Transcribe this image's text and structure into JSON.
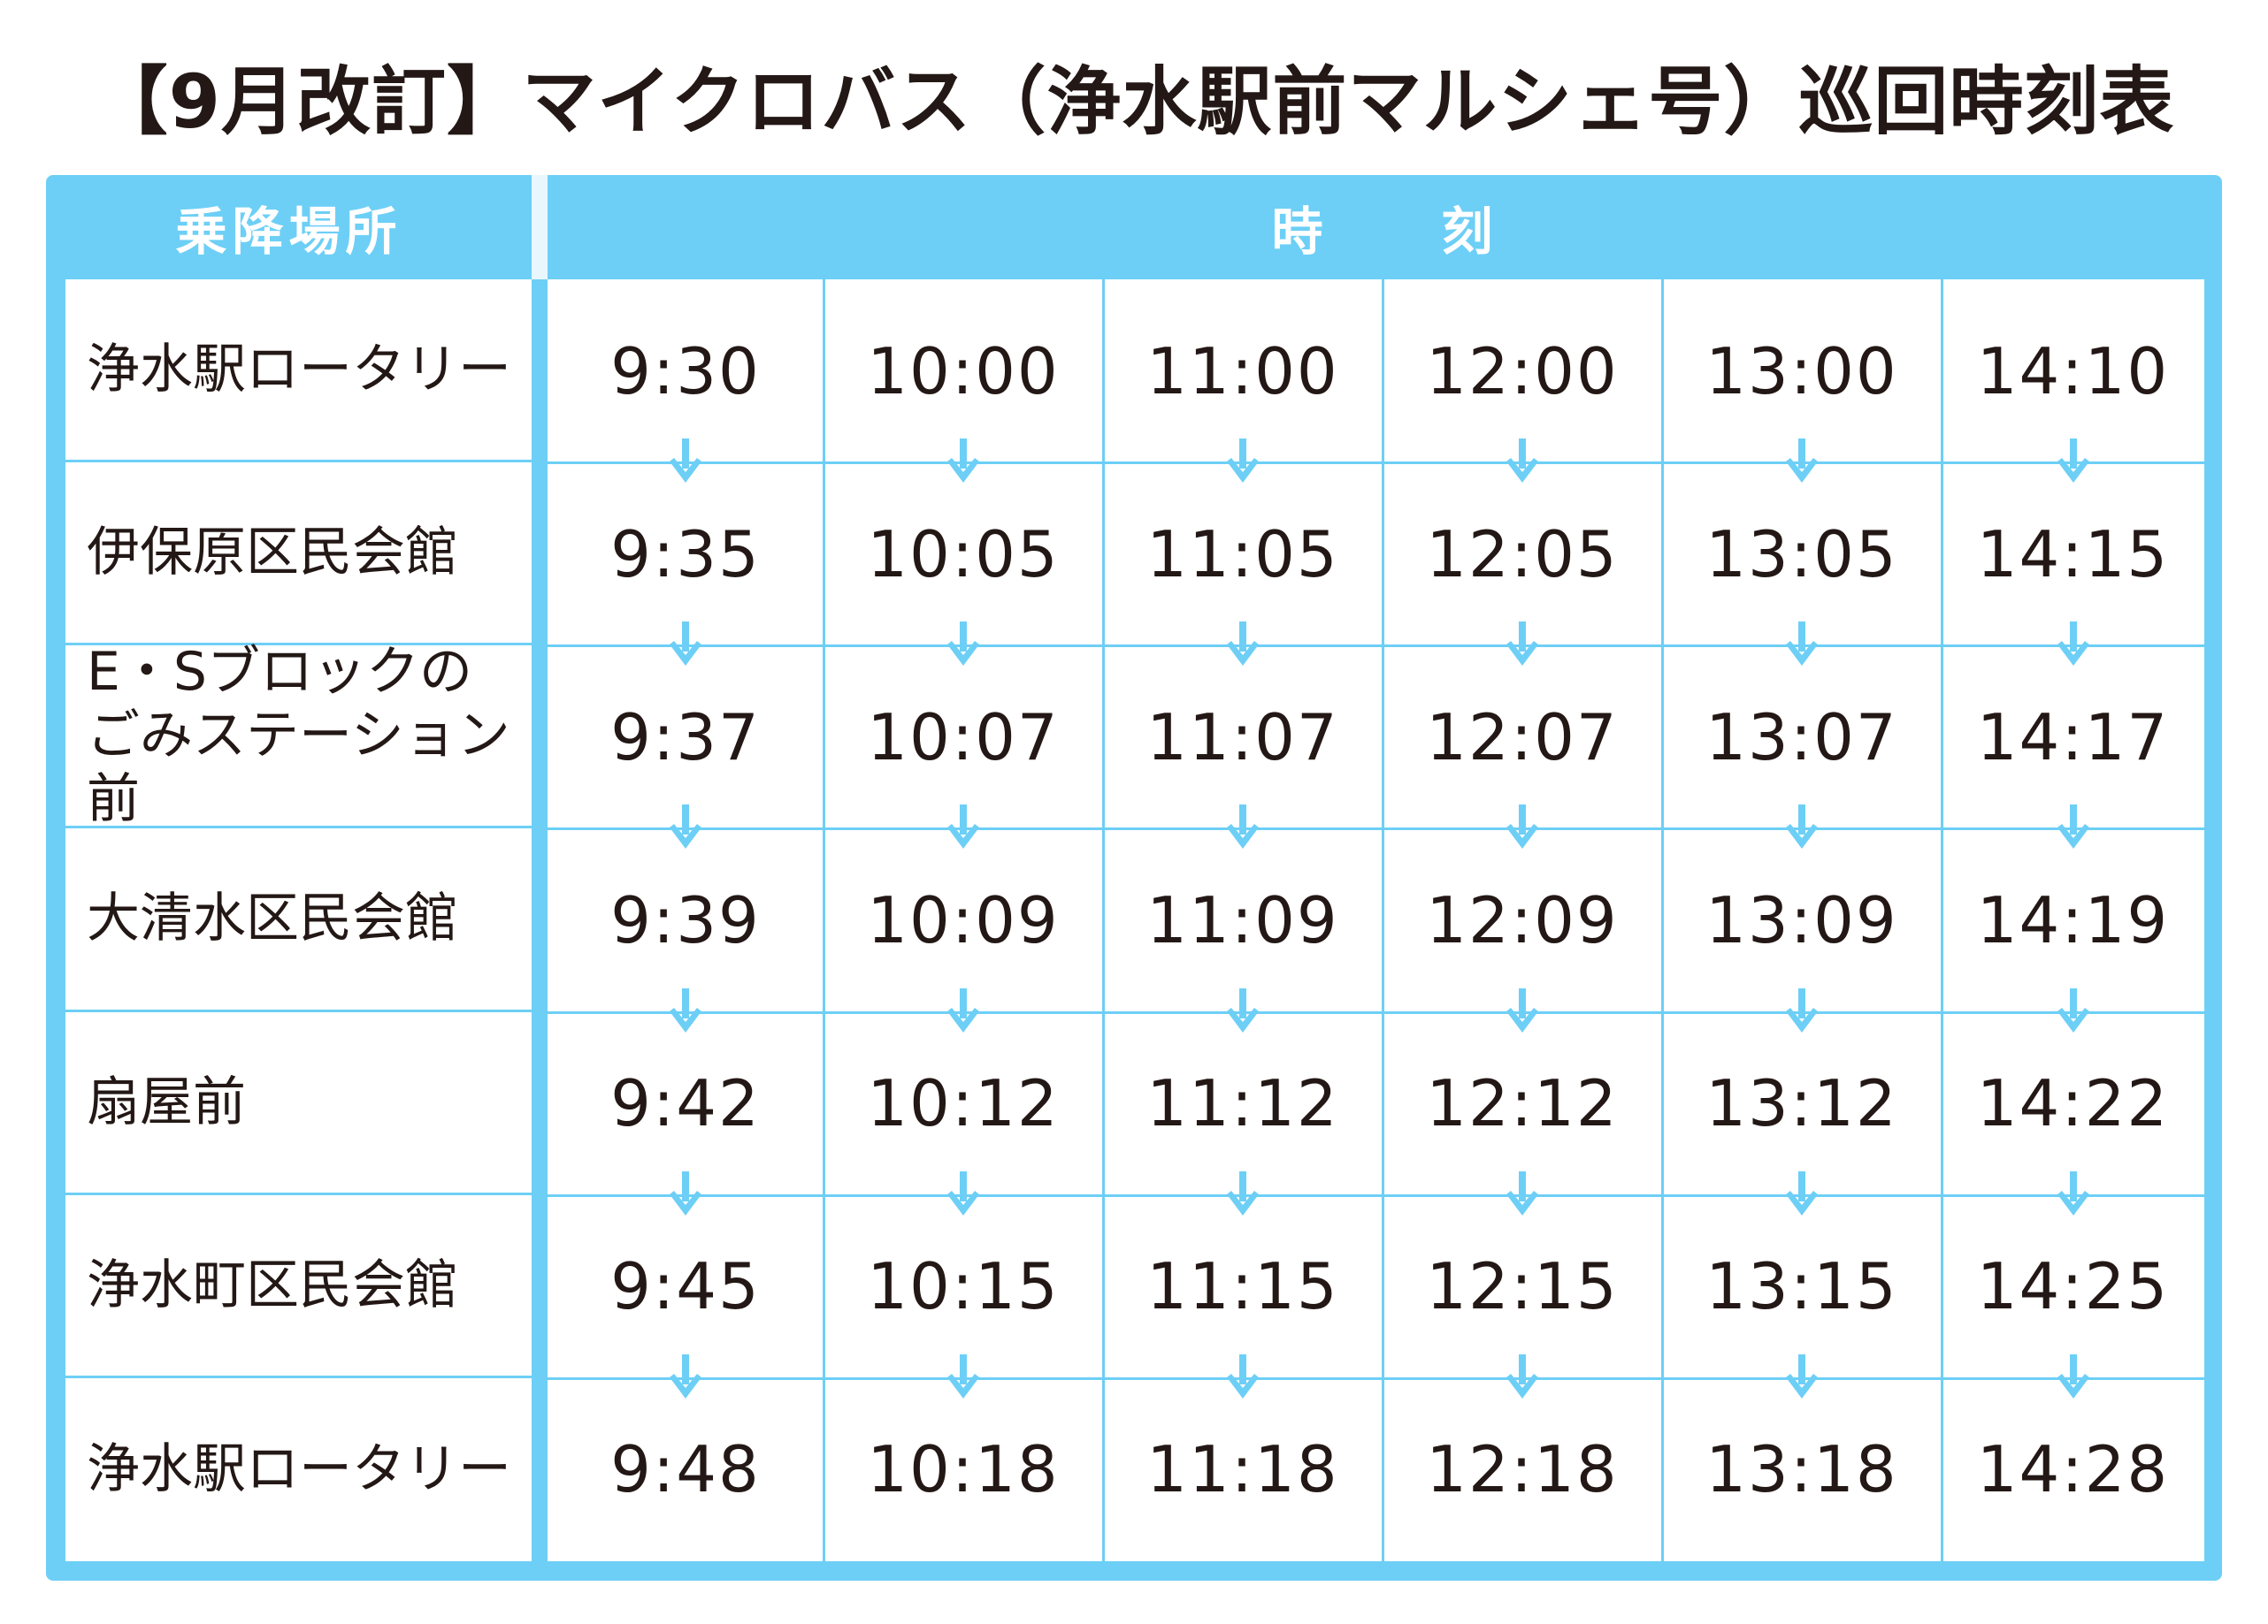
{
  "title": "【9月改訂】マイクロバス（浄水駅前マルシェ号）巡回時刻表",
  "header": {
    "stops_label": "乗降場所",
    "times_label": "時　　刻"
  },
  "colors": {
    "accent": "#6dcff6",
    "text": "#231815",
    "header_text": "#ffffff"
  },
  "arrow_icon": "down-arrow-icon",
  "stops": [
    {
      "name": "浄水駅ロータリー",
      "lines": [
        "浄水駅ロータリー"
      ]
    },
    {
      "name": "伊保原区民会館",
      "lines": [
        "伊保原区民会館"
      ]
    },
    {
      "name": "E・Sブロックのごみステーション前",
      "lines": [
        "E・Sブロックの",
        "ごみステーション前"
      ]
    },
    {
      "name": "大清水区民会館",
      "lines": [
        "大清水区民会館"
      ]
    },
    {
      "name": "扇屋前",
      "lines": [
        "扇屋前"
      ]
    },
    {
      "name": "浄水町区民会館",
      "lines": [
        "浄水町区民会館"
      ]
    },
    {
      "name": "浄水駅ロータリー",
      "lines": [
        "浄水駅ロータリー"
      ]
    }
  ],
  "trips": [
    [
      "9:30",
      "9:35",
      "9:37",
      "9:39",
      "9:42",
      "9:45",
      "9:48"
    ],
    [
      "10:00",
      "10:05",
      "10:07",
      "10:09",
      "10:12",
      "10:15",
      "10:18"
    ],
    [
      "11:00",
      "11:05",
      "11:07",
      "11:09",
      "11:12",
      "11:15",
      "11:18"
    ],
    [
      "12:00",
      "12:05",
      "12:07",
      "12:09",
      "12:12",
      "12:15",
      "12:18"
    ],
    [
      "13:00",
      "13:05",
      "13:07",
      "13:09",
      "13:12",
      "13:15",
      "13:18"
    ],
    [
      "14:10",
      "14:15",
      "14:17",
      "14:19",
      "14:22",
      "14:25",
      "14:28"
    ]
  ]
}
